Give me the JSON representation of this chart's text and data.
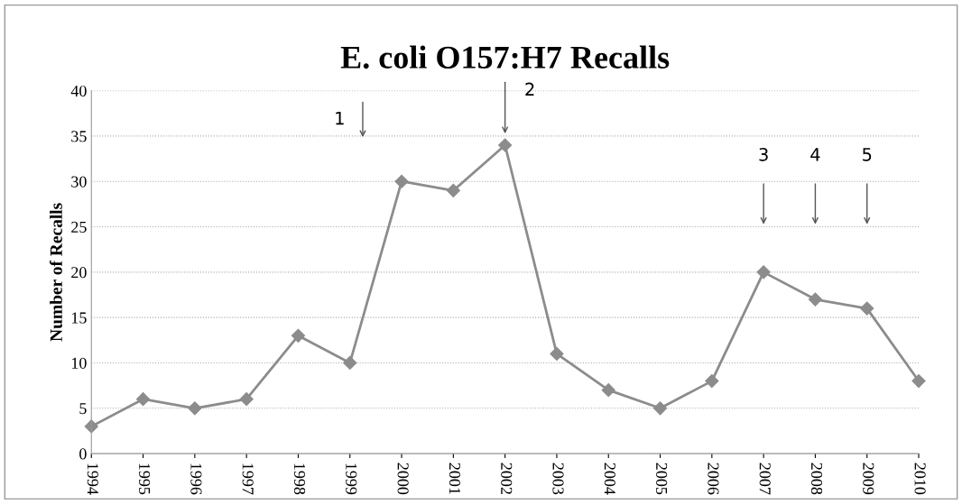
{
  "chart_data": {
    "type": "line",
    "title": "E. coli O157:H7 Recalls",
    "ylabel": "Number of Recalls",
    "categories": [
      "1994",
      "1995",
      "1996",
      "1997",
      "1998",
      "1999",
      "2000",
      "2001",
      "2002",
      "2003",
      "2004",
      "2005",
      "2006",
      "2007",
      "2008",
      "2009",
      "2010"
    ],
    "series": [
      {
        "color": "#8c8c8c",
        "values": [
          3,
          6,
          5,
          6,
          13,
          10,
          30,
          29,
          34,
          11,
          7,
          5,
          8,
          20,
          17,
          16,
          8
        ]
      }
    ],
    "annotations": [
      "1",
      "2",
      "3",
      "4",
      "5"
    ],
    "ylim": [
      0,
      40
    ],
    "yticks": [
      0,
      5,
      10,
      15,
      20,
      25,
      30,
      35,
      40
    ],
    "grid": "y",
    "marker": "diamond",
    "line_style": "solid",
    "legend": false
  }
}
